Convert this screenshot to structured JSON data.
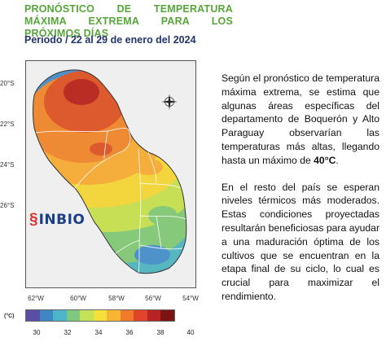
{
  "title": "PRONÓSTICO DE TEMPERATURA MÁXIMA EXTREMA PARA LOS PRÓXIMOS DÍAS",
  "period": "Periodo / 22 al 29 de enero del 2024",
  "map": {
    "lat_labels": [
      "20°S",
      "22°S",
      "24°S",
      "26°S"
    ],
    "lon_labels": [
      "62°W",
      "60°W",
      "58°W",
      "56°W",
      "54°W"
    ],
    "logo_text": "INBIO",
    "legend_unit": "(°C)",
    "legend_ticks": [
      "30",
      "32",
      "34",
      "36",
      "38",
      "40"
    ],
    "legend_colors": [
      "#5b4fa3",
      "#3f86c4",
      "#4cb6c8",
      "#7fc97f",
      "#c2e25a",
      "#f4e23b",
      "#f7b532",
      "#f0792a",
      "#e0442a",
      "#b82323",
      "#7d1414"
    ],
    "zone_colors": {
      "hot_core": "#b92d24",
      "hot": "#dd5a2e",
      "warm_orange": "#ee8a33",
      "orange": "#f5ad3b",
      "yellow": "#f3d53d",
      "yellow_green": "#c7df55",
      "green": "#86c97a",
      "teal": "#57b7c0",
      "blue": "#4d93c9"
    }
  },
  "description": {
    "p1_before": "Según el pronóstico de temperatura máxima extrema, se estima que algunas áreas específicas del departamento de Boquerón y Alto Paraguay observarían las temperaturas más altas, llegando hasta un máximo de ",
    "p1_highlight": "40°C",
    "p1_after": ".",
    "p2": "En el resto del país se esperan niveles térmicos más moderados. Estas condiciones proyectadas resultarán beneficiosas para ayudar a una maduración óptima de los cultivos que se encuentran en la etapa final de su ciclo, lo cual es crucial para maximizar el rendimiento."
  }
}
